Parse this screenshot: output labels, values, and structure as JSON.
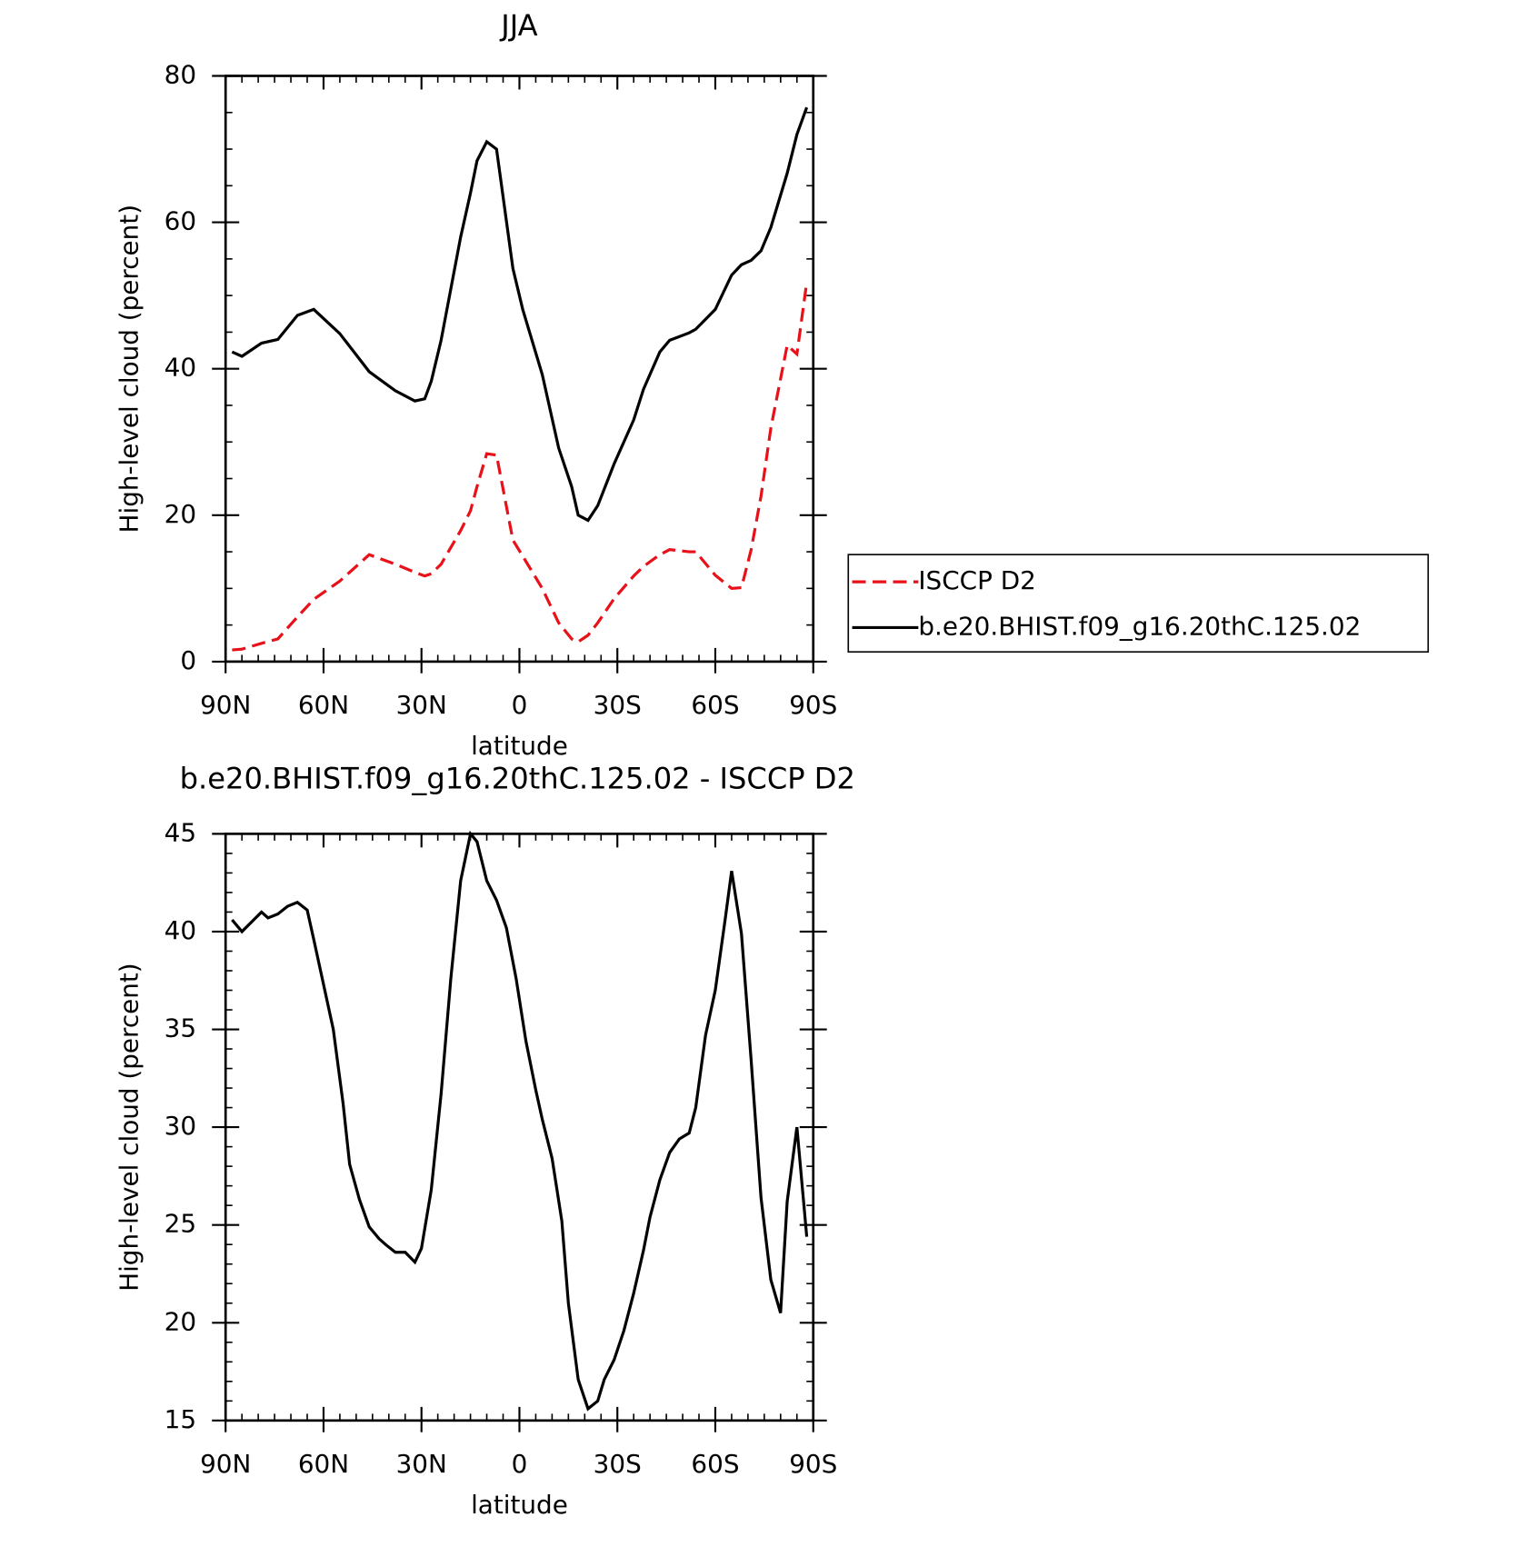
{
  "chart_data": [
    {
      "type": "line",
      "title": "JJA",
      "xlabel": "latitude",
      "ylabel": "High-level cloud (percent)",
      "x": [
        88,
        85,
        79,
        74,
        68,
        63,
        55,
        46,
        38,
        32,
        29,
        27,
        24,
        18,
        15,
        13,
        10,
        7,
        2,
        -1,
        -7,
        -12,
        -16,
        -18,
        -21,
        -24,
        -29,
        -35,
        -38,
        -43,
        -46,
        -52,
        -54,
        -60,
        -65,
        -68,
        -71,
        -74,
        -77,
        -82,
        -85,
        -88
      ],
      "series": [
        {
          "name": "ISCCP D2",
          "color": "#e8111a",
          "dash": true,
          "values": [
            1.6,
            1.7,
            2.5,
            3.1,
            6.1,
            8.5,
            11,
            14.6,
            13.3,
            12.2,
            11.7,
            12,
            13.3,
            17.9,
            20.6,
            23.9,
            28.4,
            28.2,
            16.6,
            14.4,
            10,
            5.3,
            3.1,
            2.7,
            3.6,
            5.3,
            8.6,
            11.7,
            13,
            14.6,
            15.3,
            15,
            15,
            11.8,
            10,
            10.1,
            15.3,
            22.6,
            31.9,
            43.2,
            42,
            51.8
          ]
        },
        {
          "name": "b.e20.BHIST.f09_g16.20thC.125.02",
          "color": "#000000",
          "dash": false,
          "values": [
            42.3,
            41.7,
            43.5,
            44,
            47.3,
            48.1,
            44.8,
            39.6,
            37,
            35.6,
            35.9,
            38.3,
            43.9,
            58,
            64,
            68.4,
            71,
            70,
            53.7,
            48.1,
            39.2,
            29.2,
            23.9,
            20,
            19.3,
            21.3,
            27,
            33,
            37.2,
            42.3,
            43.9,
            44.9,
            45.4,
            48.1,
            52.8,
            54.2,
            54.8,
            56.1,
            59.3,
            66.7,
            72,
            75.7
          ]
        }
      ],
      "xlim": [
        90,
        -90
      ],
      "xticks": [
        {
          "value": 90,
          "label": "90N"
        },
        {
          "value": 60,
          "label": "60N"
        },
        {
          "value": 30,
          "label": "30N"
        },
        0,
        {
          "value": -30,
          "label": "30S"
        },
        {
          "value": -60,
          "label": "60S"
        },
        {
          "value": -90,
          "label": "90S"
        }
      ],
      "ylim": [
        0,
        80
      ],
      "yticks": [
        0,
        20,
        40,
        60,
        80
      ],
      "legend": "right"
    },
    {
      "type": "line",
      "title": "b.e20.BHIST.f09_g16.20thC.125.02 - ISCCP D2",
      "xlabel": "latitude",
      "ylabel": "High-level cloud (percent)",
      "x": [
        88,
        85,
        82,
        79,
        77,
        74,
        71,
        68,
        65,
        63,
        57,
        54,
        52,
        49,
        46,
        43,
        41,
        38,
        35,
        32,
        30,
        27,
        24,
        21,
        18,
        15,
        13,
        10,
        7,
        4,
        1,
        -2,
        -5,
        -7,
        -10,
        -13,
        -15,
        -18,
        -21,
        -24,
        -26,
        -29,
        -32,
        -35,
        -38,
        -40,
        -43,
        -46,
        -49,
        -52,
        -54,
        -57,
        -60,
        -63,
        -65,
        -68,
        -71,
        -74,
        -77,
        -80,
        -82,
        -85,
        -88
      ],
      "series": [
        {
          "color": "#000000",
          "dash": false,
          "values": [
            40.6,
            40,
            40.5,
            41,
            40.7,
            40.9,
            41.3,
            41.5,
            41.1,
            39.6,
            35,
            31.2,
            28.1,
            26.3,
            24.9,
            24.3,
            24,
            23.6,
            23.6,
            23.1,
            23.8,
            26.8,
            31.7,
            37.6,
            42.6,
            45,
            44.6,
            42.6,
            41.6,
            40.2,
            37.6,
            34.4,
            31.9,
            30.4,
            28.4,
            25.2,
            21,
            17.1,
            15.6,
            16,
            17.1,
            18.1,
            19.6,
            21.5,
            23.7,
            25.4,
            27.3,
            28.7,
            29.4,
            29.7,
            31,
            34.7,
            37,
            40.6,
            43.1,
            39.9,
            33.4,
            26.4,
            22.2,
            20.5,
            26.2,
            30,
            24.4
          ]
        }
      ],
      "xlim": [
        90,
        -90
      ],
      "xticks": [
        {
          "value": 90,
          "label": "90N"
        },
        {
          "value": 60,
          "label": "60N"
        },
        {
          "value": 30,
          "label": "30N"
        },
        0,
        {
          "value": -30,
          "label": "30S"
        },
        {
          "value": -60,
          "label": "60S"
        },
        {
          "value": -90,
          "label": "90S"
        }
      ],
      "ylim": [
        15,
        45
      ],
      "yticks": [
        15,
        20,
        25,
        30,
        35,
        40,
        45
      ]
    }
  ]
}
